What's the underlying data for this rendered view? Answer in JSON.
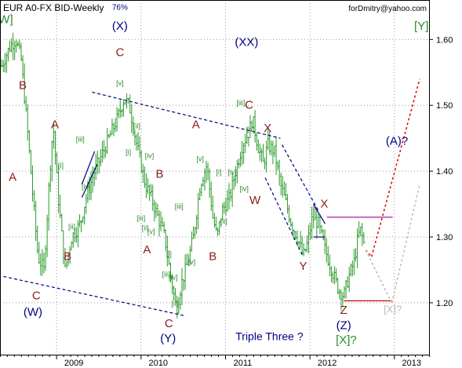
{
  "header": {
    "title": "EUR A0-FX BID-Weekly",
    "email": "forDmitry@yahoo.com"
  },
  "chart_data": {
    "type": "ohlc",
    "title": "EUR A0-FX BID-Weekly",
    "ylim": [
      1.12,
      1.66
    ],
    "y_ticks": [
      1.2,
      1.3,
      1.4,
      1.5,
      1.6
    ],
    "y_tick_labels": [
      "1.20",
      "1.30",
      "1.40",
      "1.50",
      "1.60"
    ],
    "xlim": [
      2008.33,
      2013.42
    ],
    "x_ticks": [
      2009,
      2010,
      2011,
      2012,
      2013
    ],
    "x_tick_labels": [
      "2009",
      "2010",
      "2011",
      "2012",
      "2013"
    ],
    "grid": true,
    "colors": {
      "bars": "#2a9a2a",
      "axis": "#000000",
      "grid": "#999999"
    },
    "price_path": [
      [
        2008.35,
        1.56
      ],
      [
        2008.45,
        1.59
      ],
      [
        2008.52,
        1.6
      ],
      [
        2008.58,
        1.57
      ],
      [
        2008.65,
        1.47
      ],
      [
        2008.72,
        1.36
      ],
      [
        2008.78,
        1.27
      ],
      [
        2008.85,
        1.25
      ],
      [
        2008.92,
        1.4
      ],
      [
        2008.96,
        1.47
      ],
      [
        2009.02,
        1.36
      ],
      [
        2009.1,
        1.25
      ],
      [
        2009.18,
        1.3
      ],
      [
        2009.28,
        1.32
      ],
      [
        2009.35,
        1.36
      ],
      [
        2009.45,
        1.4
      ],
      [
        2009.52,
        1.42
      ],
      [
        2009.62,
        1.45
      ],
      [
        2009.72,
        1.48
      ],
      [
        2009.8,
        1.51
      ],
      [
        2009.86,
        1.5
      ],
      [
        2009.95,
        1.44
      ],
      [
        2010.05,
        1.38
      ],
      [
        2010.12,
        1.36
      ],
      [
        2010.2,
        1.33
      ],
      [
        2010.28,
        1.3
      ],
      [
        2010.35,
        1.24
      ],
      [
        2010.42,
        1.19
      ],
      [
        2010.48,
        1.23
      ],
      [
        2010.55,
        1.26
      ],
      [
        2010.62,
        1.3
      ],
      [
        2010.7,
        1.38
      ],
      [
        2010.78,
        1.41
      ],
      [
        2010.85,
        1.33
      ],
      [
        2010.9,
        1.3
      ],
      [
        2010.96,
        1.34
      ],
      [
        2011.05,
        1.36
      ],
      [
        2011.12,
        1.4
      ],
      [
        2011.2,
        1.44
      ],
      [
        2011.28,
        1.46
      ],
      [
        2011.32,
        1.48
      ],
      [
        2011.38,
        1.44
      ],
      [
        2011.45,
        1.41
      ],
      [
        2011.5,
        1.44
      ],
      [
        2011.58,
        1.43
      ],
      [
        2011.65,
        1.38
      ],
      [
        2011.72,
        1.35
      ],
      [
        2011.78,
        1.32
      ],
      [
        2011.85,
        1.3
      ],
      [
        2011.92,
        1.27
      ],
      [
        2011.97,
        1.29
      ],
      [
        2012.03,
        1.33
      ],
      [
        2012.1,
        1.32
      ],
      [
        2012.18,
        1.28
      ],
      [
        2012.26,
        1.25
      ],
      [
        2012.34,
        1.22
      ],
      [
        2012.4,
        1.21
      ],
      [
        2012.46,
        1.24
      ],
      [
        2012.52,
        1.26
      ],
      [
        2012.57,
        1.3
      ],
      [
        2012.6,
        1.31
      ],
      [
        2012.64,
        1.29
      ]
    ],
    "lines": [
      {
        "name": "upper-trendline",
        "style": "dashed",
        "color": "#000080",
        "points": [
          [
            2009.42,
            1.52
          ],
          [
            2011.65,
            1.45
          ]
        ]
      },
      {
        "name": "lower-trendline",
        "style": "dashed",
        "color": "#000080",
        "points": [
          [
            2008.37,
            1.24
          ],
          [
            2010.53,
            1.18
          ]
        ]
      },
      {
        "name": "wedge-upper",
        "style": "dashed",
        "color": "#000080",
        "points": [
          [
            2011.67,
            1.44
          ],
          [
            2012.1,
            1.34
          ]
        ]
      },
      {
        "name": "wedge-lower",
        "style": "dashed",
        "color": "#000080",
        "points": [
          [
            2011.47,
            1.39
          ],
          [
            2011.92,
            1.27
          ]
        ]
      },
      {
        "name": "small-wedge-2009-a",
        "style": "solid",
        "color": "#000080",
        "points": [
          [
            2009.3,
            1.38
          ],
          [
            2009.45,
            1.43
          ]
        ]
      },
      {
        "name": "small-wedge-2009-b",
        "style": "solid",
        "color": "#000080",
        "points": [
          [
            2009.3,
            1.36
          ],
          [
            2009.48,
            1.41
          ]
        ]
      },
      {
        "name": "small-triangle-a",
        "style": "solid",
        "color": "#000080",
        "points": [
          [
            2012.04,
            1.35
          ],
          [
            2012.18,
            1.32
          ]
        ]
      },
      {
        "name": "small-triangle-b",
        "style": "solid",
        "color": "#000080",
        "points": [
          [
            2012.04,
            1.3
          ],
          [
            2012.18,
            1.3
          ]
        ]
      },
      {
        "name": "magenta-level",
        "style": "solid",
        "color": "#a000a0",
        "points": [
          [
            2012.2,
            1.33
          ],
          [
            2012.98,
            1.33
          ]
        ]
      },
      {
        "name": "red-level",
        "style": "solid",
        "color": "#d00000",
        "points": [
          [
            2012.4,
            1.203
          ],
          [
            2012.98,
            1.203
          ]
        ]
      },
      {
        "name": "forecast-red-1",
        "style": "dotted",
        "color": "#e00000",
        "points": [
          [
            2012.66,
            1.28
          ],
          [
            2012.73,
            1.27
          ]
        ]
      },
      {
        "name": "forecast-red-2",
        "style": "dotted",
        "color": "#e00000",
        "points": [
          [
            2012.73,
            1.27
          ],
          [
            2013.3,
            1.54
          ]
        ]
      },
      {
        "name": "forecast-gray-1",
        "style": "dotted",
        "color": "#bbbbbb",
        "points": [
          [
            2012.66,
            1.28
          ],
          [
            2012.97,
            1.2
          ]
        ]
      },
      {
        "name": "forecast-gray-2",
        "style": "dotted",
        "color": "#bbbbbb",
        "points": [
          [
            2012.97,
            1.2
          ],
          [
            2013.3,
            1.38
          ]
        ]
      }
    ],
    "annotations": [
      {
        "text": "[W]",
        "x": 2008.38,
        "y": 1.625,
        "color": "#2a8a2a",
        "size": 15
      },
      {
        "text": "B",
        "x": 2008.6,
        "y": 1.525,
        "color": "#8b1a1a",
        "size": 15
      },
      {
        "text": "A",
        "x": 2008.48,
        "y": 1.385,
        "color": "#8b1a1a",
        "size": 15
      },
      {
        "text": "A",
        "x": 2008.98,
        "y": 1.465,
        "color": "#8b1a1a",
        "size": 15
      },
      {
        "text": "B",
        "x": 2009.13,
        "y": 1.265,
        "color": "#8b1a1a",
        "size": 15
      },
      {
        "text": "C",
        "x": 2008.76,
        "y": 1.205,
        "color": "#8b1a1a",
        "size": 15
      },
      {
        "text": "(W)",
        "x": 2008.72,
        "y": 1.18,
        "color": "#000080",
        "size": 15
      },
      {
        "text": "[i]",
        "x": 2009.05,
        "y": 1.405,
        "color": "#2a8a2a",
        "size": 9
      },
      {
        "text": "[ii]",
        "x": 2009.18,
        "y": 1.312,
        "color": "#2a8a2a",
        "size": 9
      },
      {
        "text": "[iii]",
        "x": 2009.28,
        "y": 1.445,
        "color": "#2a8a2a",
        "size": 9
      },
      {
        "text": "[iv]",
        "x": 2009.35,
        "y": 1.373,
        "color": "#2a8a2a",
        "size": 9
      },
      {
        "text": "76%",
        "x": 2009.75,
        "y": 1.645,
        "color": "#000080",
        "size": 10
      },
      {
        "text": "(X)",
        "x": 2009.75,
        "y": 1.615,
        "color": "#000080",
        "size": 15
      },
      {
        "text": "C",
        "x": 2009.75,
        "y": 1.575,
        "color": "#8b1a1a",
        "size": 15
      },
      {
        "text": "[v]",
        "x": 2009.75,
        "y": 1.53,
        "color": "#2a8a2a",
        "size": 9
      },
      {
        "text": "[ii]",
        "x": 2009.95,
        "y": 1.465,
        "color": "#2a8a2a",
        "size": 9
      },
      {
        "text": "[i]",
        "x": 2009.85,
        "y": 1.425,
        "color": "#2a8a2a",
        "size": 9
      },
      {
        "text": "[iv]",
        "x": 2010.1,
        "y": 1.42,
        "color": "#2a8a2a",
        "size": 9
      },
      {
        "text": "B",
        "x": 2010.22,
        "y": 1.39,
        "color": "#8b1a1a",
        "size": 15
      },
      {
        "text": "[iii]",
        "x": 2010.0,
        "y": 1.325,
        "color": "#2a8a2a",
        "size": 9
      },
      {
        "text": "[ii]",
        "x": 2010.05,
        "y": 1.31,
        "color": "#2a8a2a",
        "size": 9
      },
      {
        "text": "[v]",
        "x": 2010.12,
        "y": 1.305,
        "color": "#2a8a2a",
        "size": 9
      },
      {
        "text": "A",
        "x": 2010.07,
        "y": 1.275,
        "color": "#8b1a1a",
        "size": 15
      },
      {
        "text": "[i]",
        "x": 2010.33,
        "y": 1.27,
        "color": "#2a8a2a",
        "size": 9
      },
      {
        "text": "[iii]",
        "x": 2010.3,
        "y": 1.24,
        "color": "#2a8a2a",
        "size": 9
      },
      {
        "text": "[iv]",
        "x": 2010.38,
        "y": 1.235,
        "color": "#2a8a2a",
        "size": 9
      },
      {
        "text": "[v]",
        "x": 2010.6,
        "y": 1.258,
        "color": "#2a8a2a",
        "size": 9
      },
      {
        "text": "[ii]",
        "x": 2010.4,
        "y": 1.195,
        "color": "#2a8a2a",
        "size": 9
      },
      {
        "text": "C",
        "x": 2010.33,
        "y": 1.163,
        "color": "#8b1a1a",
        "size": 15
      },
      {
        "text": "(Y)",
        "x": 2010.32,
        "y": 1.14,
        "color": "#000080",
        "size": 15
      },
      {
        "text": "[iii]",
        "x": 2010.45,
        "y": 1.343,
        "color": "#2a8a2a",
        "size": 9
      },
      {
        "text": "A",
        "x": 2010.65,
        "y": 1.465,
        "color": "#8b1a1a",
        "size": 15
      },
      {
        "text": "[v]",
        "x": 2010.7,
        "y": 1.415,
        "color": "#2a8a2a",
        "size": 9
      },
      {
        "text": "[i]",
        "x": 2010.92,
        "y": 1.395,
        "color": "#2a8a2a",
        "size": 9
      },
      {
        "text": "[ii]",
        "x": 2010.98,
        "y": 1.32,
        "color": "#2a8a2a",
        "size": 9
      },
      {
        "text": "B",
        "x": 2010.85,
        "y": 1.265,
        "color": "#8b1a1a",
        "size": 15
      },
      {
        "text": "[iv]",
        "x": 2011.08,
        "y": 1.395,
        "color": "#2a8a2a",
        "size": 9
      },
      {
        "text": "(XX)",
        "x": 2011.25,
        "y": 1.59,
        "color": "#000080",
        "size": 15
      },
      {
        "text": "[iii]",
        "x": 2011.18,
        "y": 1.5,
        "color": "#2a8a2a",
        "size": 9
      },
      {
        "text": "C",
        "x": 2011.28,
        "y": 1.495,
        "color": "#8b1a1a",
        "size": 15
      },
      {
        "text": "[v]",
        "x": 2011.3,
        "y": 1.46,
        "color": "#2a8a2a",
        "size": 9
      },
      {
        "text": "X",
        "x": 2011.5,
        "y": 1.46,
        "color": "#8b1a1a",
        "size": 15
      },
      {
        "text": "[iv]",
        "x": 2011.22,
        "y": 1.37,
        "color": "#2a8a2a",
        "size": 9
      },
      {
        "text": "W",
        "x": 2011.35,
        "y": 1.35,
        "color": "#8b1a1a",
        "size": 15
      },
      {
        "text": "X",
        "x": 2012.17,
        "y": 1.345,
        "color": "#8b1a1a",
        "size": 15
      },
      {
        "text": "Y",
        "x": 2011.92,
        "y": 1.25,
        "color": "#8b1a1a",
        "size": 15
      },
      {
        "text": "Z",
        "x": 2012.4,
        "y": 1.183,
        "color": "#8b1a1a",
        "size": 15
      },
      {
        "text": "(Z)",
        "x": 2012.4,
        "y": 1.16,
        "color": "#000080",
        "size": 15
      },
      {
        "text": "[X]?",
        "x": 2012.43,
        "y": 1.138,
        "color": "#2a8a2a",
        "size": 15
      },
      {
        "text": "Triple Three ?",
        "x": 2011.52,
        "y": 1.143,
        "color": "#000080",
        "size": 14
      },
      {
        "text": "[Y]",
        "x": 2013.32,
        "y": 1.615,
        "color": "#2a8a2a",
        "size": 15
      },
      {
        "text": "(A)?",
        "x": 2013.03,
        "y": 1.44,
        "color": "#000080",
        "size": 15
      },
      {
        "text": "[X]?",
        "x": 2012.98,
        "y": 1.185,
        "color": "#bbbbbb",
        "size": 13
      }
    ]
  }
}
